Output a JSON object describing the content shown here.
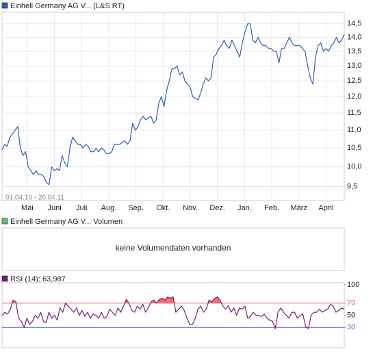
{
  "chart_data": [
    {
      "type": "line",
      "title": "Einhell Germany AG V... (L&S RT)",
      "date_range": "01.04.10 - 20.04.11",
      "month_labels": [
        "Mai",
        "Juni",
        "Juli",
        "Aug.",
        "Sep.",
        "Okt.",
        "Nov.",
        "Dez.",
        "Jan.",
        "Feb.",
        "März",
        "April"
      ],
      "log_scale": true,
      "grid": true,
      "ylim": [
        9.16,
        14.94
      ],
      "yticks": [
        {
          "value": 9.5,
          "label": "9,5"
        },
        {
          "value": 10.0,
          "label": "10,0"
        },
        {
          "value": 10.5,
          "label": "10,5"
        },
        {
          "value": 11.0,
          "label": "11,0"
        },
        {
          "value": 11.5,
          "label": "11,5"
        },
        {
          "value": 12.0,
          "label": "12,0"
        },
        {
          "value": 12.5,
          "label": "12,5"
        },
        {
          "value": 13.0,
          "label": "13,0"
        },
        {
          "value": 13.5,
          "label": "13,5"
        },
        {
          "value": 14.0,
          "label": "14,0"
        },
        {
          "value": 14.5,
          "label": "14,5"
        }
      ],
      "series": [
        {
          "color": "#2b5fb3",
          "values": [
            10.45,
            10.6,
            10.55,
            10.8,
            10.9,
            11.0,
            11.1,
            10.5,
            10.3,
            10.4,
            10.0,
            9.9,
            9.8,
            9.9,
            9.8,
            9.8,
            9.75,
            9.6,
            9.55,
            10.0,
            9.9,
            9.95,
            9.9,
            10.3,
            10.1,
            10.0,
            10.5,
            10.8,
            10.7,
            10.6,
            10.6,
            10.5,
            10.6,
            10.55,
            10.4,
            10.4,
            10.5,
            10.4,
            10.5,
            10.45,
            10.35,
            10.35,
            10.4,
            10.6,
            10.6,
            10.6,
            10.65,
            10.7,
            10.6,
            10.7,
            11.2,
            11.0,
            11.1,
            11.3,
            11.4,
            11.3,
            11.35,
            11.4,
            11.2,
            11.3,
            11.8,
            12.0,
            11.7,
            12.2,
            12.5,
            12.9,
            12.9,
            13.0,
            12.7,
            12.8,
            12.5,
            12.4,
            12.3,
            12.0,
            11.95,
            11.9,
            12.1,
            12.4,
            12.6,
            12.5,
            12.6,
            13.3,
            13.4,
            13.6,
            13.7,
            13.9,
            13.7,
            13.6,
            13.9,
            13.7,
            13.5,
            13.3,
            13.8,
            14.2,
            14.5,
            14.5,
            13.9,
            13.8,
            14.0,
            13.8,
            13.7,
            13.7,
            13.6,
            13.6,
            13.5,
            13.5,
            13.1,
            13.6,
            13.6,
            13.8,
            14.0,
            13.8,
            13.7,
            13.7,
            13.7,
            13.6,
            13.5,
            13.0,
            12.6,
            12.4,
            13.3,
            13.7,
            13.8,
            13.5,
            13.6,
            13.5,
            13.7,
            13.8,
            14.0,
            13.8,
            13.9,
            14.1
          ]
        }
      ]
    },
    {
      "type": "empty",
      "title": "Einhell Germany AG V... Volumen",
      "color": "#5cc36a",
      "message": "keine Volumendaten vorhanden"
    },
    {
      "type": "line",
      "title": "RSI (14): 63,987",
      "ylim": [
        0,
        100
      ],
      "yticks": [
        30,
        50,
        70,
        100
      ],
      "reference_lines": [
        {
          "value": 70,
          "color": "#e05a5a"
        },
        {
          "value": 30,
          "color": "#5a5ae0"
        }
      ],
      "fill_above": 70,
      "fill_color": "#f07070",
      "series": [
        {
          "color": "#7a1a78",
          "values": [
            50,
            55,
            52,
            60,
            75,
            72,
            45,
            40,
            30,
            45,
            35,
            40,
            50,
            45,
            55,
            40,
            38,
            55,
            45,
            50,
            42,
            62,
            55,
            70,
            65,
            60,
            55,
            62,
            50,
            58,
            48,
            55,
            45,
            52,
            50,
            45,
            55,
            45,
            48,
            60,
            55,
            50,
            62,
            55,
            65,
            76,
            70,
            58,
            55,
            65,
            60,
            68,
            55,
            62,
            72,
            75,
            70,
            76,
            78,
            75,
            80,
            78,
            80,
            55,
            60,
            65,
            58,
            45,
            35,
            35,
            45,
            60,
            65,
            55,
            60,
            75,
            72,
            78,
            80,
            75,
            65,
            60,
            66,
            55,
            62,
            50,
            62,
            60,
            65,
            45,
            48,
            55,
            50,
            50,
            48,
            52,
            45,
            42,
            40,
            28,
            55,
            62,
            55,
            50,
            45,
            55,
            55,
            45,
            50,
            52,
            32,
            28,
            50,
            55,
            55,
            60,
            55,
            58,
            60,
            68,
            65,
            55,
            58,
            62,
            60
          ]
        }
      ]
    }
  ]
}
